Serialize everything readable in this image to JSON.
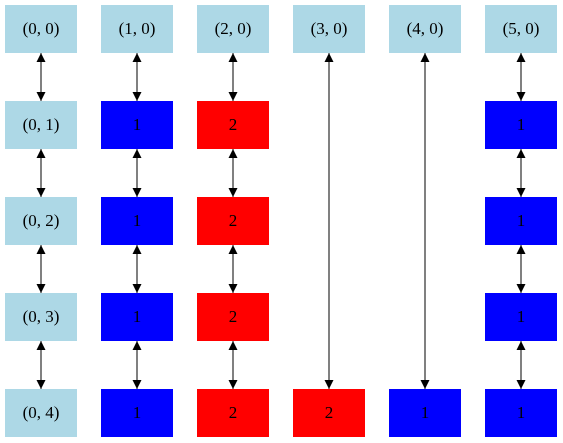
{
  "colors": {
    "header": "#add8e6",
    "blue": "#0000ff",
    "red": "#ff0000",
    "edge": "#000000"
  },
  "headers": [
    "(0, 0)",
    "(1, 0)",
    "(2, 0)",
    "(3, 0)",
    "(4, 0)",
    "(5, 0)"
  ],
  "columns": [
    {
      "cells": [
        {
          "label": "(0, 1)",
          "fill": "header"
        },
        {
          "label": "(0, 2)",
          "fill": "header"
        },
        {
          "label": "(0, 3)",
          "fill": "header"
        },
        {
          "label": "(0, 4)",
          "fill": "header"
        }
      ]
    },
    {
      "cells": [
        {
          "label": "1",
          "fill": "blue"
        },
        {
          "label": "1",
          "fill": "blue"
        },
        {
          "label": "1",
          "fill": "blue"
        },
        {
          "label": "1",
          "fill": "blue"
        }
      ]
    },
    {
      "cells": [
        {
          "label": "2",
          "fill": "red"
        },
        {
          "label": "2",
          "fill": "red"
        },
        {
          "label": "2",
          "fill": "red"
        },
        {
          "label": "2",
          "fill": "red"
        }
      ]
    },
    {
      "cells": [
        null,
        null,
        null,
        {
          "label": "2",
          "fill": "red"
        }
      ]
    },
    {
      "cells": [
        null,
        null,
        null,
        {
          "label": "1",
          "fill": "blue"
        }
      ]
    },
    {
      "cells": [
        {
          "label": "1",
          "fill": "blue"
        },
        {
          "label": "1",
          "fill": "blue"
        },
        {
          "label": "1",
          "fill": "blue"
        },
        {
          "label": "1",
          "fill": "blue"
        }
      ]
    }
  ]
}
